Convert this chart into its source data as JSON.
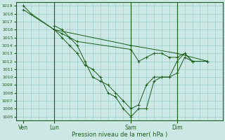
{
  "xlabel": "Pression niveau de la mer( hPa )",
  "bg_color": "#cce8e4",
  "grid_color": "#99cccc",
  "line_color": "#1a5c1a",
  "ylim": [
    1004.5,
    1019.5
  ],
  "yticks": [
    1005,
    1006,
    1007,
    1008,
    1009,
    1010,
    1011,
    1012,
    1013,
    1014,
    1015,
    1016,
    1017,
    1018,
    1019
  ],
  "xtick_labels": [
    "Ven",
    "Lun",
    "Sam",
    "Dim"
  ],
  "xtick_positions": [
    0,
    4,
    14,
    20
  ],
  "xlim": [
    -1,
    26
  ],
  "vline_positions": [
    4,
    14,
    20
  ],
  "lines": [
    {
      "x": [
        0,
        1,
        4,
        5,
        6,
        7,
        8,
        9,
        10,
        11,
        12,
        13,
        14,
        15,
        16,
        17,
        18,
        19,
        20,
        21,
        22,
        24
      ],
      "y": [
        1019,
        1018,
        1016,
        1015,
        1014,
        1013,
        1011.5,
        1011,
        1010,
        1008,
        1007.5,
        1006,
        1005,
        1006,
        1006,
        1009.5,
        1010,
        1010,
        1010.5,
        1012.5,
        1012,
        1012
      ]
    },
    {
      "x": [
        4,
        5,
        6,
        7,
        8,
        9,
        10,
        11,
        12,
        13,
        14,
        15,
        16,
        17,
        18,
        19,
        20,
        21,
        22,
        24
      ],
      "y": [
        1016.5,
        1016,
        1015,
        1014,
        1012,
        1010,
        1009.5,
        1009,
        1008,
        1007,
        1006,
        1006.5,
        1009,
        1010,
        1010,
        1010,
        1012,
        1013,
        1012,
        1012
      ]
    },
    {
      "x": [
        0,
        4,
        14,
        20,
        24
      ],
      "y": [
        1018.5,
        1016,
        1014,
        1013,
        1012
      ]
    },
    {
      "x": [
        4,
        5,
        6,
        7,
        14,
        15,
        16,
        17,
        18,
        19,
        20,
        21,
        22,
        24
      ],
      "y": [
        1016,
        1015.5,
        1015,
        1014.5,
        1013.5,
        1012,
        1012.5,
        1013,
        1013,
        1012.5,
        1012.5,
        1013,
        1012,
        1012
      ]
    }
  ],
  "marker": "+",
  "marker_lines": [
    0,
    1
  ]
}
